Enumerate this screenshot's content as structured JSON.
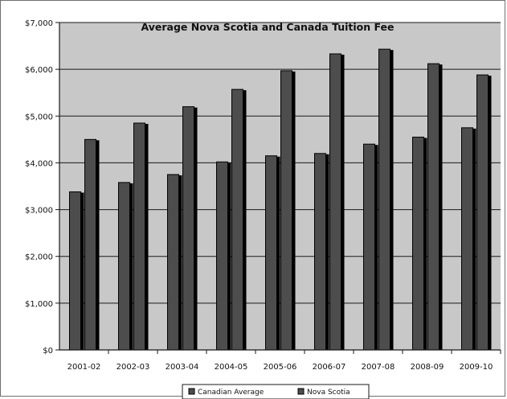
{
  "chart_data": {
    "type": "bar",
    "title": "Average Nova Scotia and Canada Tuition Fee",
    "categories": [
      "2001-02",
      "2002-03",
      "2003-04",
      "2004-05",
      "2005-06",
      "2006-07",
      "2007-08",
      "2008-09",
      "2009-10"
    ],
    "series": [
      {
        "name": "Canadian Average",
        "values": [
          3380,
          3580,
          3750,
          4020,
          4150,
          4200,
          4400,
          4550,
          4750
        ],
        "color": "#4d4d4d"
      },
      {
        "name": "Nova Scotia",
        "values": [
          4500,
          4850,
          5200,
          5570,
          5970,
          6330,
          6430,
          6120,
          5880
        ],
        "color": "#4d4d4d"
      }
    ],
    "yticks": [
      "$0",
      "$1,000",
      "$2,000",
      "$3,000",
      "$4,000",
      "$5,000",
      "$6,000",
      "$7,000"
    ],
    "ylim": [
      0,
      7000
    ],
    "grid": true,
    "plot_background": "#c8c8c8",
    "legend_position": "bottom"
  }
}
